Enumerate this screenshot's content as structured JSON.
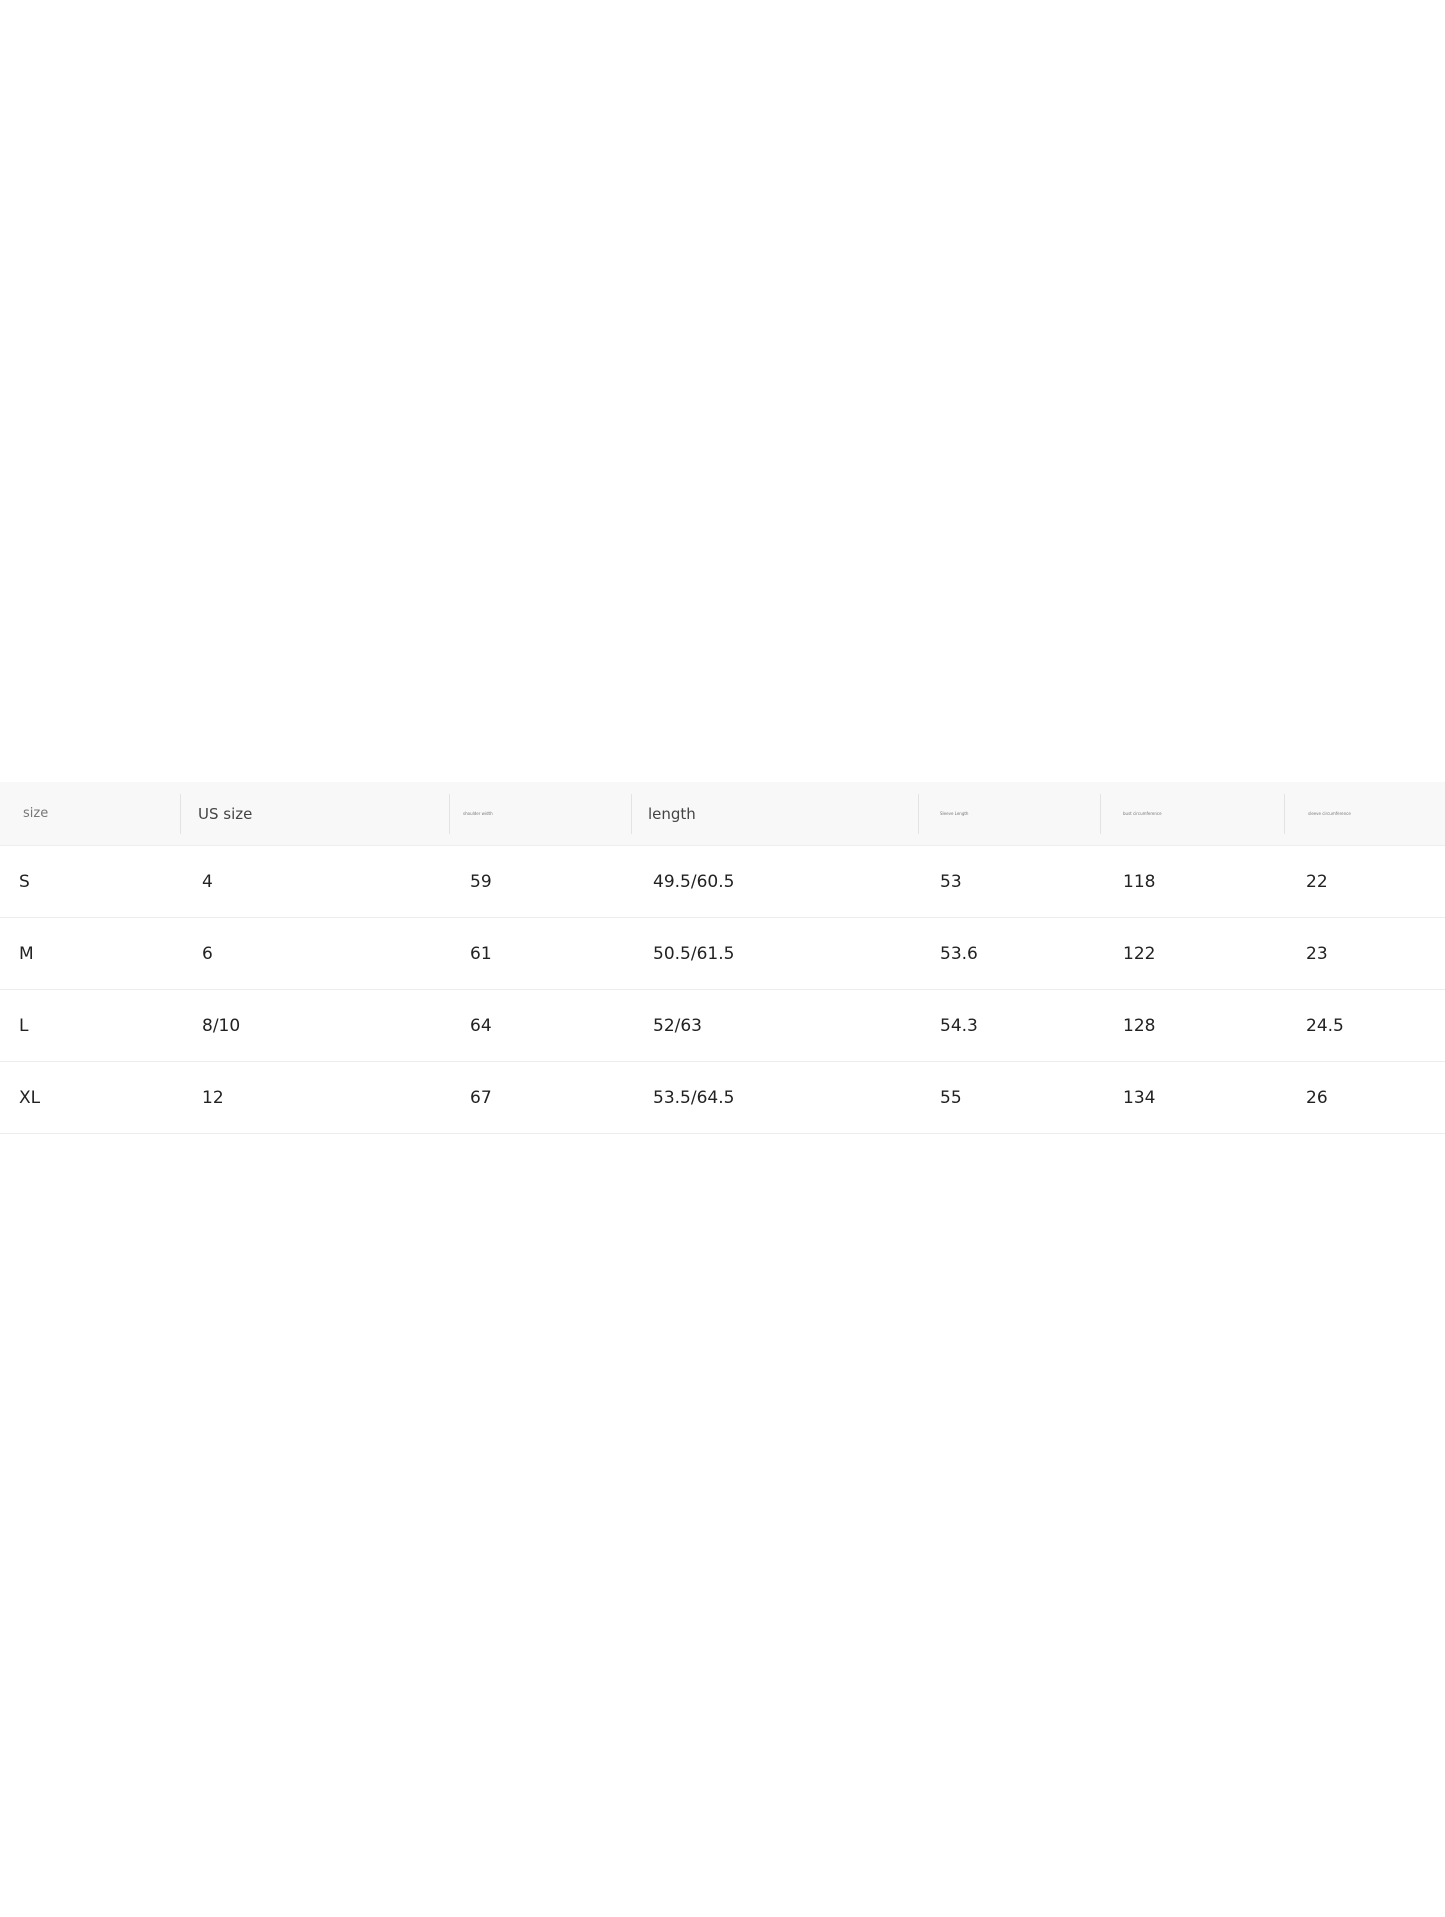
{
  "headers": [
    "size",
    "US size",
    "shoulder width",
    "length",
    "Sleeve Length",
    "bust circumference",
    "sleeve circumference"
  ],
  "rows": [
    [
      "S",
      "4",
      "59",
      "49.5/60.5",
      "53",
      "118",
      "22"
    ],
    [
      "M",
      "6",
      "61",
      "50.5/61.5",
      "53.6",
      "122",
      "23"
    ],
    [
      "L",
      "8/10",
      "64",
      "52/63",
      "54.3",
      "128",
      "24.5"
    ],
    [
      "XL",
      "12",
      "67",
      "53.5/64.5",
      "55",
      "134",
      "26"
    ]
  ]
}
